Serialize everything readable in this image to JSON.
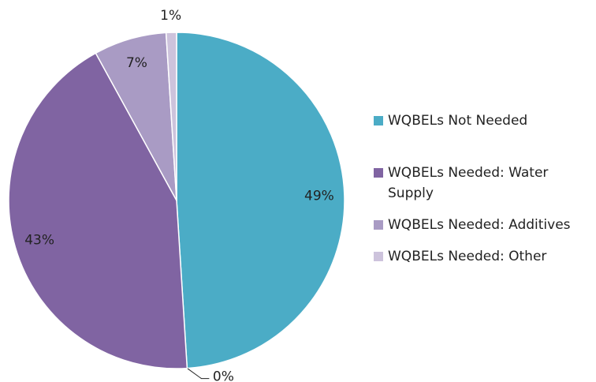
{
  "chart_data": {
    "type": "pie",
    "categories": [
      "WQBELs Not Needed",
      null,
      "WQBELs Needed: Water Supply",
      "WQBELs Needed: Additives",
      "WQBELs Needed: Other"
    ],
    "values": [
      49,
      0,
      43,
      7,
      1
    ],
    "value_labels": [
      "49%",
      "0%",
      "43%",
      "7%",
      "1%"
    ],
    "colors": [
      "#4bacc6",
      "#4f81bd",
      "#8064a2",
      "#a99bc4",
      "#cdc3dc"
    ],
    "legend": "right"
  }
}
